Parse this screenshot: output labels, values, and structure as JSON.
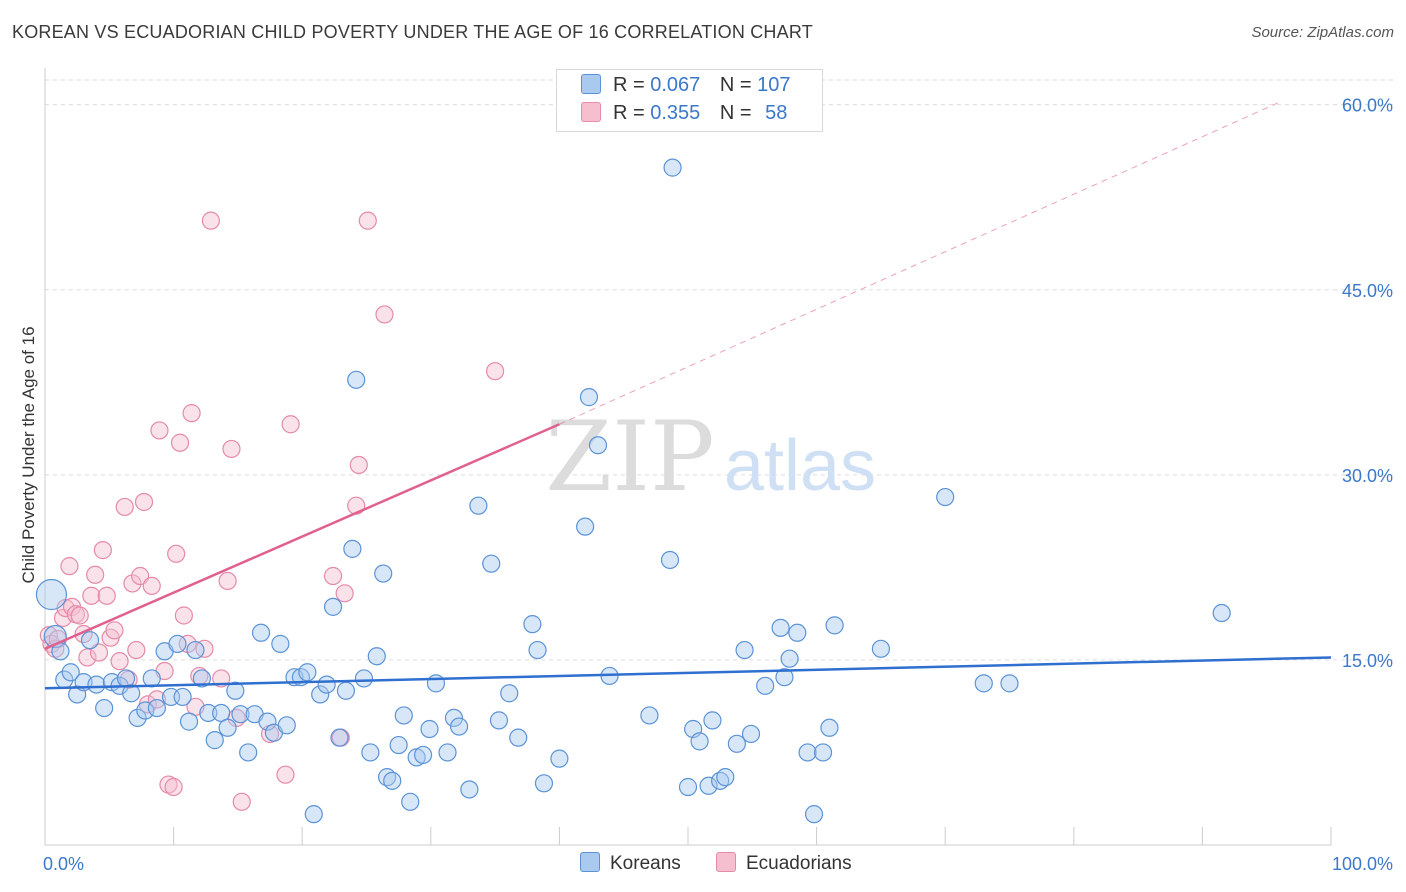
{
  "header": {
    "title": "KOREAN VS ECUADORIAN CHILD POVERTY UNDER THE AGE OF 16 CORRELATION CHART",
    "source": "Source: ZipAtlas.com"
  },
  "watermark": {
    "zip": "ZIP",
    "atlas": "atlas"
  },
  "legend": {
    "koreans": {
      "r_label": "R =",
      "r_value": "0.067",
      "n_label": "N =",
      "n_value": "107"
    },
    "ecuadorians": {
      "r_label": "R =",
      "r_value": "0.355",
      "n_label": "N =",
      "n_value": "58"
    }
  },
  "bottom_legend": {
    "koreans": "Koreans",
    "ecuadorians": "Ecuadorians"
  },
  "colors": {
    "korean_fill": "#a9c9ef",
    "korean_stroke": "#5b93d6",
    "korean_line": "#2f6fcf",
    "ecuadorian_fill": "#f5bfd0",
    "ecuadorian_stroke": "#e58aa8",
    "ecuadorian_line": "#e0608e",
    "axis_label": "#3b78c9",
    "grid": "#dddddd"
  },
  "chart_data": {
    "type": "scatter",
    "title": "KOREAN VS ECUADORIAN CHILD POVERTY UNDER THE AGE OF 16 CORRELATION CHART",
    "xlabel": "",
    "ylabel": "Child Poverty Under the Age of 16",
    "xlim": [
      0,
      100
    ],
    "ylim": [
      0,
      62
    ],
    "x_tick_labels": [
      "0.0%",
      "100.0%"
    ],
    "y_ticks": [
      15,
      30,
      45,
      60
    ],
    "y_tick_labels": [
      "15.0%",
      "30.0%",
      "45.0%",
      "60.0%"
    ],
    "grid": true,
    "legend_position": "top-center",
    "series": [
      {
        "name": "Koreans",
        "r": 0.067,
        "n": 107,
        "trend": {
          "x": [
            0,
            100
          ],
          "y": [
            12.7,
            15.2
          ]
        },
        "points": [
          [
            0.5,
            20.3
          ],
          [
            0.8,
            16.9
          ],
          [
            1.2,
            15.7
          ],
          [
            1.5,
            13.4
          ],
          [
            2.0,
            14.0
          ],
          [
            2.5,
            12.2
          ],
          [
            3.0,
            13.2
          ],
          [
            3.5,
            16.6
          ],
          [
            4.0,
            13.0
          ],
          [
            4.6,
            11.1
          ],
          [
            5.2,
            13.2
          ],
          [
            5.8,
            12.9
          ],
          [
            6.3,
            13.5
          ],
          [
            6.7,
            12.3
          ],
          [
            7.2,
            10.3
          ],
          [
            7.8,
            10.9
          ],
          [
            8.3,
            13.5
          ],
          [
            8.7,
            11.1
          ],
          [
            9.3,
            15.7
          ],
          [
            9.8,
            12.0
          ],
          [
            10.3,
            16.3
          ],
          [
            10.7,
            12.0
          ],
          [
            11.2,
            10.0
          ],
          [
            11.7,
            15.8
          ],
          [
            12.2,
            13.5
          ],
          [
            12.7,
            10.7
          ],
          [
            13.2,
            8.5
          ],
          [
            13.7,
            10.7
          ],
          [
            14.2,
            9.5
          ],
          [
            14.8,
            12.5
          ],
          [
            15.2,
            10.6
          ],
          [
            15.8,
            7.5
          ],
          [
            16.3,
            10.6
          ],
          [
            16.8,
            17.2
          ],
          [
            17.3,
            10.0
          ],
          [
            17.8,
            9.1
          ],
          [
            18.3,
            16.3
          ],
          [
            18.8,
            9.7
          ],
          [
            19.4,
            13.6
          ],
          [
            19.9,
            13.6
          ],
          [
            20.4,
            14.0
          ],
          [
            20.9,
            2.5
          ],
          [
            21.4,
            12.2
          ],
          [
            21.9,
            13.0
          ],
          [
            22.4,
            19.3
          ],
          [
            22.9,
            8.7
          ],
          [
            23.4,
            12.5
          ],
          [
            23.9,
            24.0
          ],
          [
            24.2,
            37.7
          ],
          [
            24.8,
            13.5
          ],
          [
            25.3,
            7.5
          ],
          [
            25.8,
            15.3
          ],
          [
            26.3,
            22.0
          ],
          [
            26.6,
            5.5
          ],
          [
            27.0,
            5.2
          ],
          [
            27.5,
            8.1
          ],
          [
            27.9,
            10.5
          ],
          [
            28.4,
            3.5
          ],
          [
            28.9,
            7.1
          ],
          [
            29.4,
            7.3
          ],
          [
            29.9,
            9.4
          ],
          [
            30.4,
            13.1
          ],
          [
            31.3,
            7.5
          ],
          [
            31.8,
            10.3
          ],
          [
            32.2,
            9.6
          ],
          [
            33.0,
            4.5
          ],
          [
            33.7,
            27.5
          ],
          [
            34.7,
            22.8
          ],
          [
            35.3,
            10.1
          ],
          [
            36.1,
            12.3
          ],
          [
            36.8,
            8.7
          ],
          [
            37.9,
            17.9
          ],
          [
            38.3,
            15.8
          ],
          [
            38.8,
            5.0
          ],
          [
            40.0,
            7.0
          ],
          [
            42.0,
            25.8
          ],
          [
            42.3,
            36.3
          ],
          [
            43.0,
            32.4
          ],
          [
            43.9,
            13.7
          ],
          [
            47.0,
            10.5
          ],
          [
            48.6,
            23.1
          ],
          [
            48.8,
            54.9
          ],
          [
            50.0,
            4.7
          ],
          [
            50.4,
            9.4
          ],
          [
            50.9,
            8.4
          ],
          [
            51.6,
            4.8
          ],
          [
            51.9,
            10.1
          ],
          [
            52.5,
            5.2
          ],
          [
            52.9,
            5.5
          ],
          [
            53.8,
            8.2
          ],
          [
            54.9,
            9.0
          ],
          [
            54.4,
            15.8
          ],
          [
            56.0,
            12.9
          ],
          [
            57.2,
            17.6
          ],
          [
            57.5,
            13.6
          ],
          [
            57.9,
            15.1
          ],
          [
            58.5,
            17.2
          ],
          [
            59.3,
            7.5
          ],
          [
            60.5,
            7.5
          ],
          [
            61.0,
            9.5
          ],
          [
            61.4,
            17.8
          ],
          [
            65.0,
            15.9
          ],
          [
            70.0,
            28.2
          ],
          [
            73.0,
            13.1
          ],
          [
            75.0,
            13.1
          ],
          [
            91.5,
            18.8
          ],
          [
            59.8,
            2.5
          ]
        ]
      },
      {
        "name": "Ecuadorians",
        "r": 0.355,
        "n": 58,
        "trend": {
          "x": [
            0,
            40
          ],
          "y": [
            15.9,
            34.1
          ],
          "dashed_to": {
            "x": 96,
            "y": 60.2
          }
        },
        "points": [
          [
            0.3,
            17.0
          ],
          [
            0.5,
            16.3
          ],
          [
            0.8,
            15.9
          ],
          [
            1.0,
            16.7
          ],
          [
            1.4,
            18.4
          ],
          [
            1.6,
            19.2
          ],
          [
            1.9,
            22.6
          ],
          [
            2.1,
            19.3
          ],
          [
            2.4,
            18.7
          ],
          [
            2.7,
            18.6
          ],
          [
            3.0,
            17.1
          ],
          [
            3.3,
            15.2
          ],
          [
            3.6,
            20.2
          ],
          [
            3.9,
            21.9
          ],
          [
            4.2,
            15.6
          ],
          [
            4.5,
            23.9
          ],
          [
            4.8,
            20.2
          ],
          [
            5.1,
            16.8
          ],
          [
            5.4,
            17.4
          ],
          [
            5.8,
            14.9
          ],
          [
            6.2,
            27.4
          ],
          [
            6.5,
            13.4
          ],
          [
            6.8,
            21.2
          ],
          [
            7.1,
            15.8
          ],
          [
            7.4,
            21.8
          ],
          [
            7.7,
            27.8
          ],
          [
            8.0,
            11.4
          ],
          [
            8.3,
            21.0
          ],
          [
            8.7,
            11.8
          ],
          [
            8.9,
            33.6
          ],
          [
            9.3,
            14.1
          ],
          [
            9.6,
            4.9
          ],
          [
            10.0,
            4.7
          ],
          [
            10.2,
            23.6
          ],
          [
            10.5,
            32.6
          ],
          [
            10.8,
            18.6
          ],
          [
            11.1,
            16.3
          ],
          [
            11.4,
            35.0
          ],
          [
            11.7,
            11.2
          ],
          [
            12.0,
            13.7
          ],
          [
            12.4,
            15.9
          ],
          [
            12.9,
            50.6
          ],
          [
            13.7,
            13.5
          ],
          [
            14.2,
            21.4
          ],
          [
            14.5,
            32.1
          ],
          [
            14.9,
            10.3
          ],
          [
            15.3,
            3.5
          ],
          [
            17.5,
            9.0
          ],
          [
            18.7,
            5.7
          ],
          [
            19.1,
            34.1
          ],
          [
            22.4,
            21.8
          ],
          [
            23.0,
            8.7
          ],
          [
            23.3,
            20.4
          ],
          [
            24.2,
            27.5
          ],
          [
            24.4,
            30.8
          ],
          [
            25.1,
            50.6
          ],
          [
            26.4,
            43.0
          ],
          [
            35.0,
            38.4
          ]
        ]
      }
    ]
  }
}
